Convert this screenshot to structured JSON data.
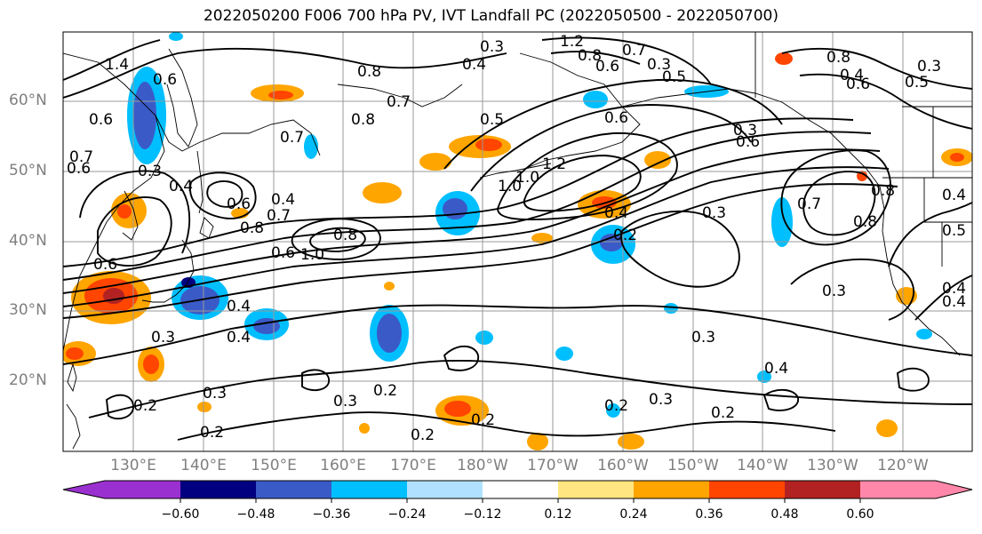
{
  "title": "2022050200 F006 700 hPa PV, IVT Landfall PC (2022050500 - 2022050700)",
  "map": {
    "lat_labels": [
      "60°N",
      "50°N",
      "40°N",
      "30°N",
      "20°N"
    ],
    "lon_labels": [
      "130°E",
      "140°E",
      "150°E",
      "160°E",
      "170°E",
      "180°W",
      "170°W",
      "160°W",
      "150°W",
      "140°W",
      "130°W",
      "120°W"
    ],
    "contour_labels": [
      "1.2",
      "0.6",
      "0.7",
      "0.6",
      "1.4",
      "0.6",
      "0.3",
      "0.4",
      "0.6",
      "0.8",
      "0.7",
      "0.8",
      "0.3",
      "0.4",
      "0.5",
      "1.0",
      "1.2",
      "0.6",
      "0.7",
      "0.8",
      "0.6",
      "0.7",
      "0.3",
      "0.5",
      "0.8",
      "0.4",
      "0.6",
      "0.5",
      "0.3",
      "0.4",
      "0.2",
      "0.3",
      "0.2",
      "0.3",
      "0.2",
      "0.3",
      "0.4",
      "0.2",
      "0.2",
      "0.2",
      "0.3",
      "0.4",
      "0.3",
      "0.7",
      "0.8",
      "0.8",
      "0.4",
      "0.5",
      "0.3",
      "0.4",
      "0.8",
      "1.0",
      "0.6",
      "0.4",
      "0.3",
      "0.6",
      "1.0",
      "0.2",
      "0.4",
      "0.8",
      "0.7",
      "0.3",
      "0.2",
      "0.6",
      "0.4"
    ]
  },
  "colorbar": {
    "ticks": [
      "−0.60",
      "−0.48",
      "−0.36",
      "−0.24",
      "−0.12",
      "0.12",
      "0.24",
      "0.36",
      "0.48",
      "0.60"
    ],
    "colors": [
      "#9b30d0",
      "#000080",
      "#3a5bc7",
      "#00bfff",
      "#b0e2ff",
      "#ffffff",
      "#ffe680",
      "#ffa500",
      "#ff4500",
      "#b22222",
      "#ff88aa"
    ]
  }
}
